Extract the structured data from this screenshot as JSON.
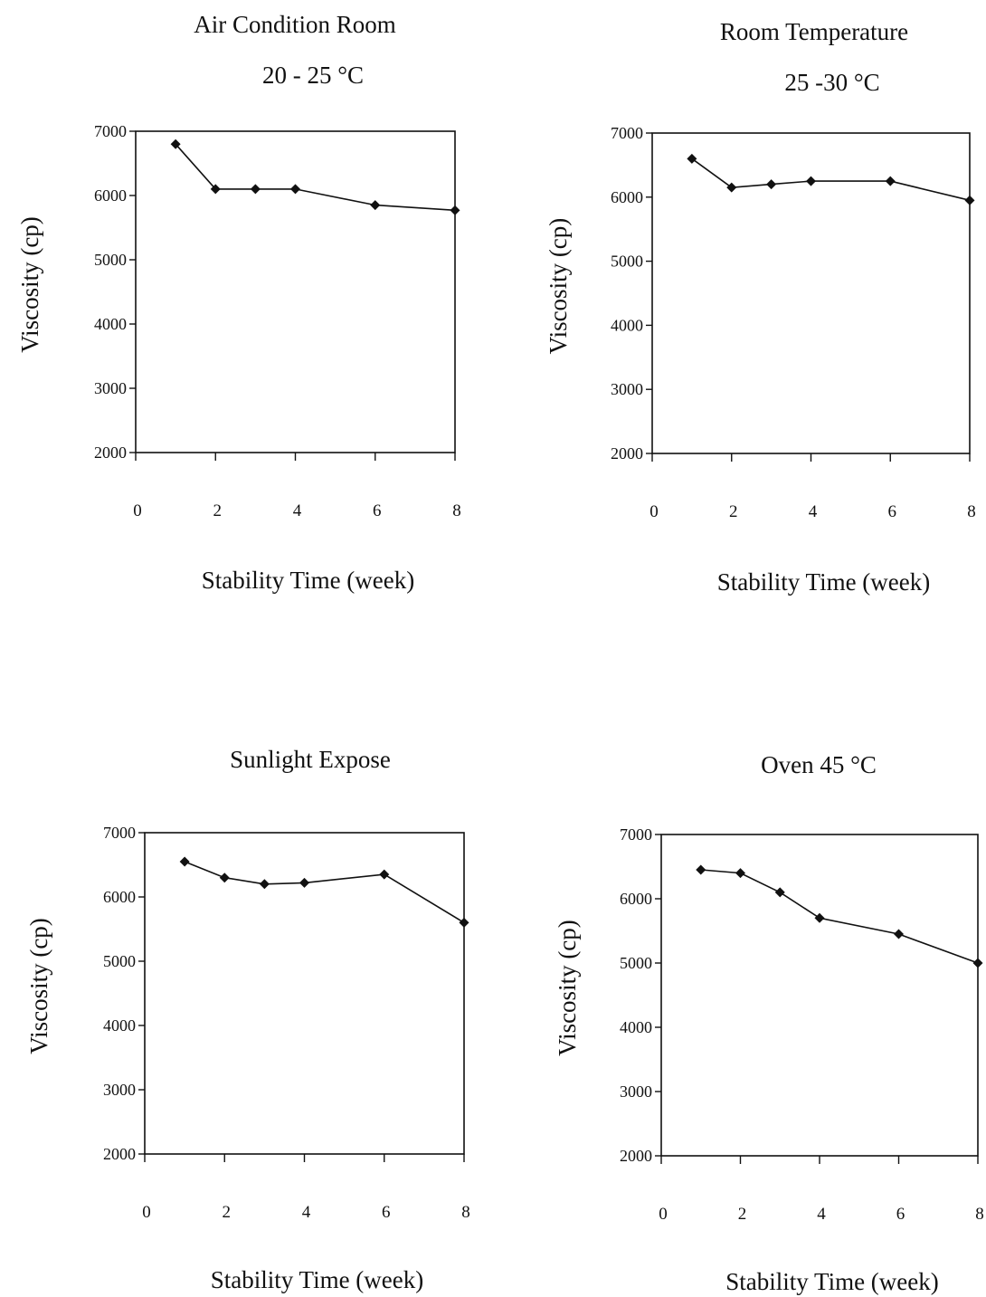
{
  "chart_data": [
    {
      "type": "line",
      "title": "Air Condition Room",
      "subtitle": "20 - 25 °C",
      "xlabel": "Stability Time (week)",
      "ylabel": "Viscosity (cp)",
      "xticks": [
        0,
        2,
        4,
        6,
        8
      ],
      "yticks": [
        2000,
        3000,
        4000,
        5000,
        6000,
        7000
      ],
      "xlim": [
        0,
        8
      ],
      "ylim": [
        2000,
        7000
      ],
      "legend": "none",
      "grid": false,
      "x": [
        1,
        2,
        3,
        4,
        6,
        8
      ],
      "values": [
        6800,
        6100,
        6100,
        6100,
        5850,
        5770
      ]
    },
    {
      "type": "line",
      "title": "Room Temperature",
      "subtitle": "25 -30 °C",
      "xlabel": "Stability Time (week)",
      "ylabel": "Viscosity (cp)",
      "xticks": [
        0,
        2,
        4,
        6,
        8
      ],
      "yticks": [
        2000,
        3000,
        4000,
        5000,
        6000,
        7000
      ],
      "xlim": [
        0,
        8
      ],
      "ylim": [
        2000,
        7000
      ],
      "legend": "none",
      "grid": false,
      "x": [
        1,
        2,
        3,
        4,
        6,
        8
      ],
      "values": [
        6600,
        6150,
        6200,
        6250,
        6250,
        5950
      ]
    },
    {
      "type": "line",
      "title": "Sunlight Expose",
      "subtitle": "",
      "xlabel": "Stability Time (week)",
      "ylabel": "Viscosity (cp)",
      "xticks": [
        0,
        2,
        4,
        6,
        8
      ],
      "yticks": [
        2000,
        3000,
        4000,
        5000,
        6000,
        7000
      ],
      "xlim": [
        0,
        8
      ],
      "ylim": [
        2000,
        7000
      ],
      "legend": "none",
      "grid": false,
      "x": [
        1,
        2,
        3,
        4,
        6,
        8
      ],
      "values": [
        6550,
        6300,
        6200,
        6220,
        6350,
        5600
      ]
    },
    {
      "type": "line",
      "title": "Oven 45 °C",
      "subtitle": "",
      "xlabel": "Stability Time (week)",
      "ylabel": "Viscosity (cp)",
      "xticks": [
        0,
        2,
        4,
        6,
        8
      ],
      "yticks": [
        2000,
        3000,
        4000,
        5000,
        6000,
        7000
      ],
      "xlim": [
        0,
        8
      ],
      "ylim": [
        2000,
        7000
      ],
      "legend": "none",
      "grid": false,
      "x": [
        1,
        2,
        3,
        4,
        6,
        8
      ],
      "values": [
        6450,
        6400,
        6100,
        5700,
        5450,
        5000
      ]
    }
  ]
}
